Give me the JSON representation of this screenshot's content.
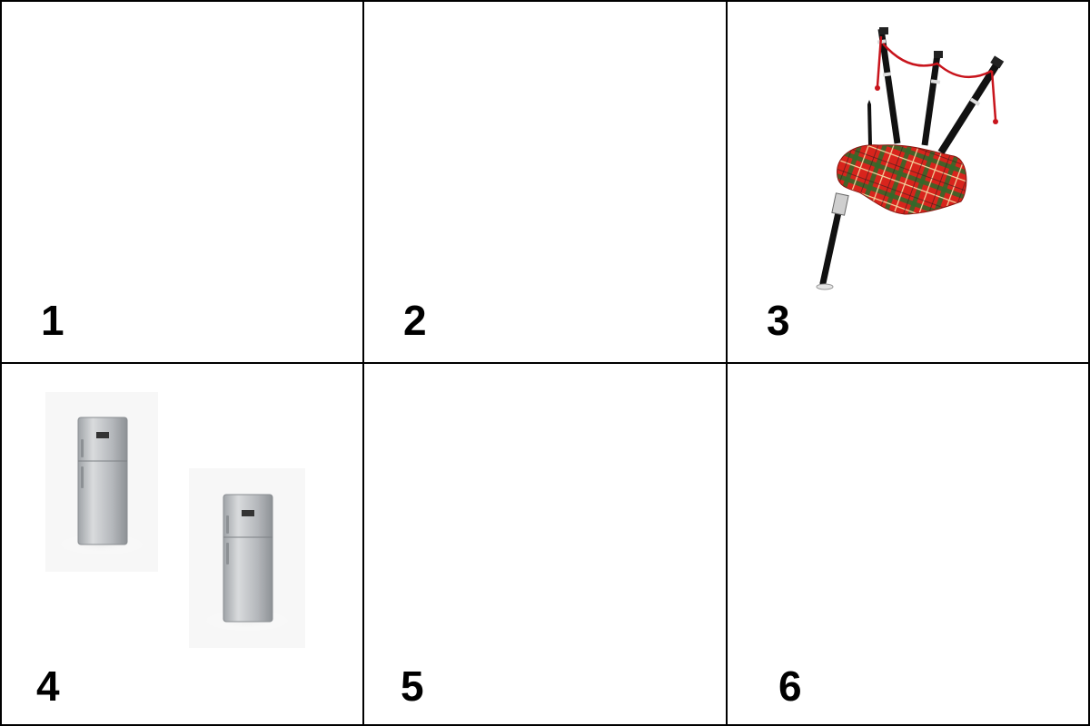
{
  "panels": [
    {
      "number": "1",
      "content": "empty"
    },
    {
      "number": "2",
      "content": "empty"
    },
    {
      "number": "3",
      "content": "bagpipes-icon"
    },
    {
      "number": "4",
      "content": "refrigerator-icon"
    },
    {
      "number": "5",
      "content": "empty"
    },
    {
      "number": "6",
      "content": "empty"
    }
  ],
  "colors": {
    "border": "#000000",
    "background": "#ffffff",
    "tartan_red": "#d8241c",
    "tartan_green": "#2f6b2a",
    "fridge_steel": "#b9bcc0"
  }
}
